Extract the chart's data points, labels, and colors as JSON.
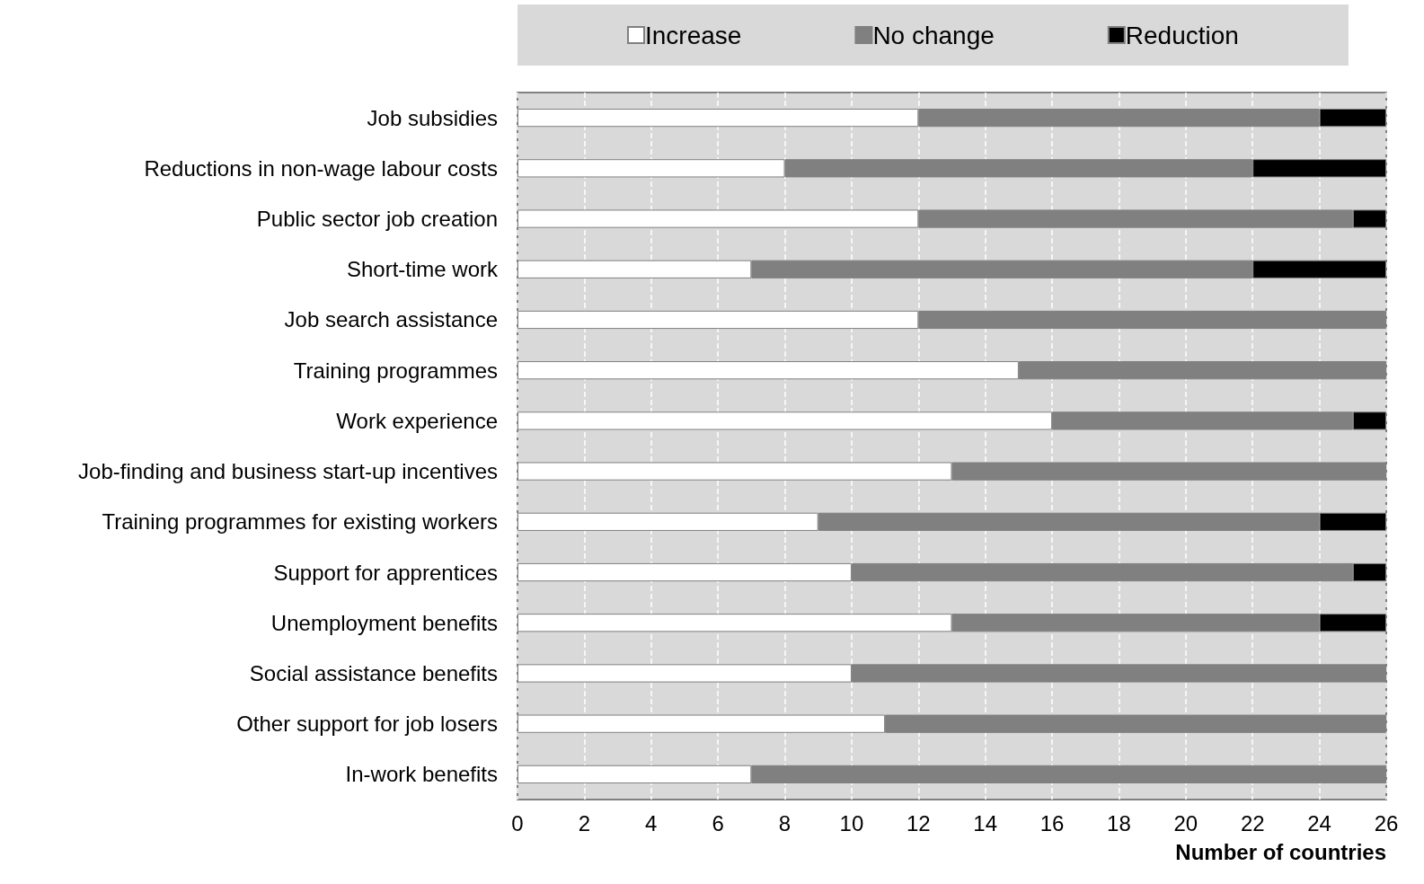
{
  "chart_data": {
    "type": "bar",
    "orientation": "horizontal",
    "stacked": true,
    "categories": [
      "Job subsidies",
      "Reductions in non-wage labour costs",
      "Public sector job creation",
      "Short-time work",
      "Job search assistance",
      "Training programmes",
      "Work experience",
      "Job-finding and business start-up incentives",
      "Training programmes for existing workers",
      "Support for apprentices",
      "Unemployment benefits",
      "Social assistance benefits",
      "Other support for job losers",
      "In-work benefits"
    ],
    "series": [
      {
        "name": "Increase",
        "color": "#ffffff",
        "values": [
          12,
          8,
          12,
          7,
          12,
          15,
          16,
          13,
          9,
          10,
          13,
          10,
          11,
          7
        ]
      },
      {
        "name": "No change",
        "color": "#808080",
        "values": [
          12,
          14,
          13,
          15,
          14,
          11,
          9,
          13,
          15,
          15,
          11,
          16,
          15,
          19
        ]
      },
      {
        "name": "Reduction",
        "color": "#000000",
        "values": [
          2,
          4,
          1,
          4,
          0,
          0,
          1,
          0,
          2,
          1,
          2,
          0,
          0,
          0
        ]
      }
    ],
    "xlabel": "Number of countries",
    "xlim": [
      0,
      26
    ],
    "xticks": [
      0,
      2,
      4,
      6,
      8,
      10,
      12,
      14,
      16,
      18,
      20,
      22,
      24,
      26
    ],
    "grid": "x",
    "legend": "top"
  }
}
